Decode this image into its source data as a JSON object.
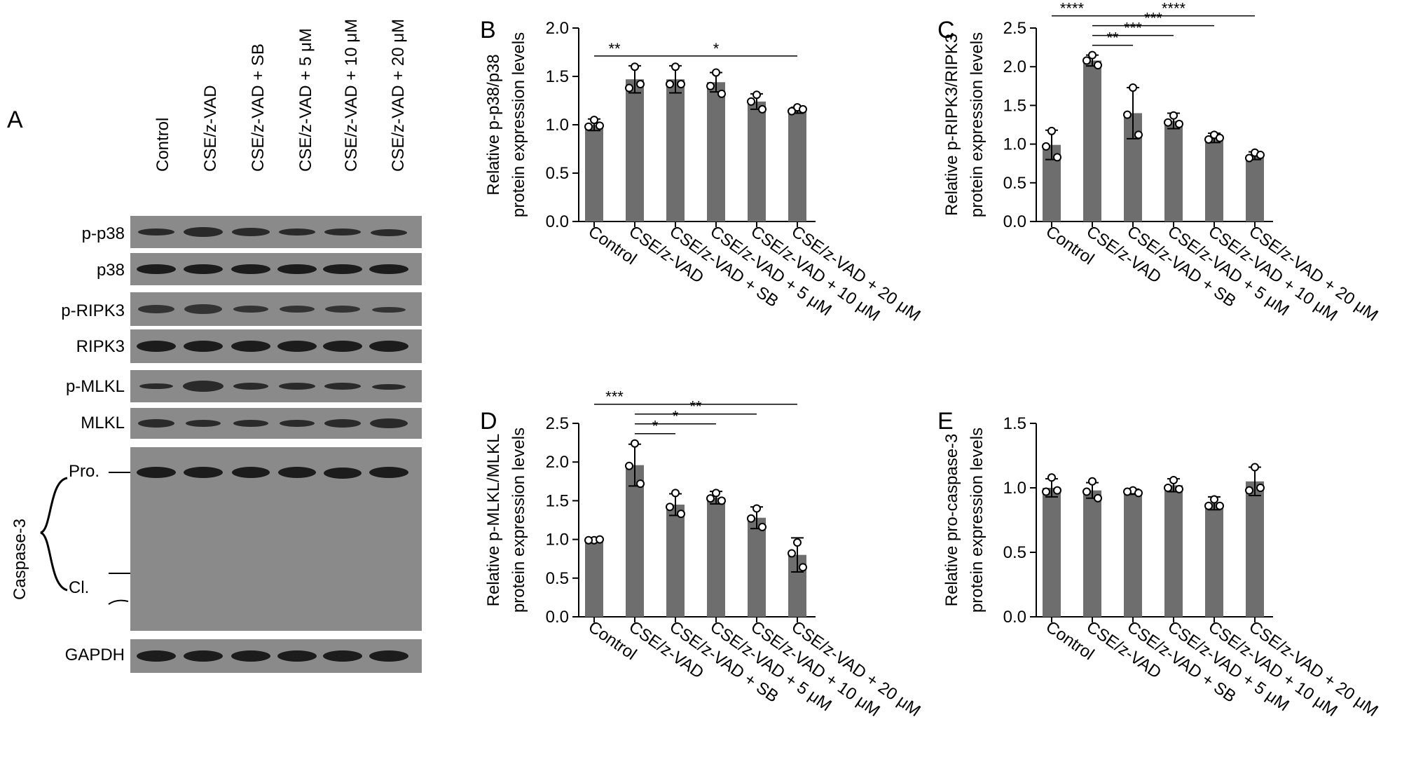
{
  "figure": {
    "panel_A": {
      "letter": "A",
      "lanes": [
        "Control",
        "CSE/z-VAD",
        "CSE/z-VAD + SB",
        "CSE/z-VAD + 5 μM",
        "CSE/z-VAD + 10 μM",
        "CSE/z-VAD + 20 μM"
      ],
      "blots": [
        {
          "label": "p-p38"
        },
        {
          "label": "p38"
        },
        {
          "label": "p-RIPK3"
        },
        {
          "label": "RIPK3"
        },
        {
          "label": "p-MLKL"
        },
        {
          "label": "MLKL"
        },
        {
          "label": "Caspase-3",
          "pro_label": "Pro.",
          "cleaved_label": "Cl."
        },
        {
          "label": "GAPDH"
        }
      ]
    }
  },
  "chart_data": [
    {
      "panel": "B",
      "type": "bar",
      "categories": [
        "Control",
        "CSE/z-VAD",
        "CSE/z-VAD + SB",
        "CSE/z-VAD + 5 μM",
        "CSE/z-VAD + 10 μM",
        "CSE/z-VAD + 20 μM"
      ],
      "values": [
        1.0,
        1.47,
        1.47,
        1.44,
        1.24,
        1.15
      ],
      "errors": [
        0.06,
        0.14,
        0.14,
        0.1,
        0.08,
        0.03
      ],
      "points": [
        [
          1.05,
          0.98,
          0.99
        ],
        [
          1.6,
          1.38,
          1.42
        ],
        [
          1.6,
          1.42,
          1.42
        ],
        [
          1.54,
          1.4,
          1.32
        ],
        [
          1.31,
          1.24,
          1.16
        ],
        [
          1.18,
          1.14,
          1.16
        ]
      ],
      "ylabel_lines": [
        "Relative p-p38/p38",
        "protein expression levels"
      ],
      "ylim": [
        0,
        2.0
      ],
      "yticks": [
        "0.0",
        "0.5",
        "1.0",
        "1.5",
        "2.0"
      ],
      "significance": [
        {
          "from": 0,
          "to": 1,
          "label": "**",
          "level": 0
        },
        {
          "from": 1,
          "to": 5,
          "label": "*",
          "level": 0
        }
      ],
      "grid": false
    },
    {
      "panel": "C",
      "type": "bar",
      "categories": [
        "Control",
        "CSE/z-VAD",
        "CSE/z-VAD + SB",
        "CSE/z-VAD + 5 μM",
        "CSE/z-VAD + 10 μM",
        "CSE/z-VAD + 20 μM"
      ],
      "values": [
        0.99,
        2.08,
        1.4,
        1.3,
        1.08,
        0.85
      ],
      "errors": [
        0.19,
        0.07,
        0.33,
        0.1,
        0.06,
        0.05
      ],
      "points": [
        [
          1.17,
          0.97,
          0.83
        ],
        [
          2.15,
          2.08,
          2.02
        ],
        [
          1.73,
          1.38,
          1.12
        ],
        [
          1.37,
          1.28,
          1.26
        ],
        [
          1.12,
          1.06,
          1.08
        ],
        [
          0.89,
          0.82,
          0.86
        ]
      ],
      "ylabel_lines": [
        "Relative p-RIPK3/RIPK3",
        "protein expression levels"
      ],
      "ylim": [
        0,
        2.5
      ],
      "yticks": [
        "0.0",
        "0.5",
        "1.0",
        "1.5",
        "2.0",
        "2.5"
      ],
      "significance": [
        {
          "from": 0,
          "to": 1,
          "label": "****",
          "level": 3
        },
        {
          "from": 1,
          "to": 2,
          "label": "**",
          "level": 0
        },
        {
          "from": 1,
          "to": 3,
          "label": "***",
          "level": 1
        },
        {
          "from": 1,
          "to": 4,
          "label": "***",
          "level": 2
        },
        {
          "from": 1,
          "to": 5,
          "label": "****",
          "level": 3
        }
      ],
      "grid": false
    },
    {
      "panel": "D",
      "type": "bar",
      "categories": [
        "Control",
        "CSE/z-VAD",
        "CSE/z-VAD + SB",
        "CSE/z-VAD + 5 μM",
        "CSE/z-VAD + 10 μM",
        "CSE/z-VAD + 20 μM"
      ],
      "values": [
        0.99,
        1.96,
        1.45,
        1.54,
        1.28,
        0.8
      ],
      "errors": [
        0.02,
        0.27,
        0.14,
        0.08,
        0.14,
        0.22
      ],
      "points": [
        [
          0.99,
          0.99,
          1.0
        ],
        [
          2.24,
          1.95,
          1.72
        ],
        [
          1.6,
          1.42,
          1.33
        ],
        [
          1.6,
          1.53,
          1.5
        ],
        [
          1.4,
          1.27,
          1.16
        ],
        [
          0.96,
          0.82,
          0.64
        ]
      ],
      "ylabel_lines": [
        "Relative p-MLKL/MLKL",
        "protein expression levels"
      ],
      "ylim": [
        0,
        2.5
      ],
      "yticks": [
        "0.0",
        "0.5",
        "1.0",
        "1.5",
        "2.0",
        "2.5"
      ],
      "significance": [
        {
          "from": 0,
          "to": 1,
          "label": "***",
          "level": 3
        },
        {
          "from": 1,
          "to": 2,
          "label": "*",
          "level": 0
        },
        {
          "from": 1,
          "to": 3,
          "label": "*",
          "level": 1
        },
        {
          "from": 1,
          "to": 4,
          "label": "**",
          "level": 2
        },
        {
          "from": 1,
          "to": 5,
          "label": "",
          "level": 3
        }
      ],
      "grid": false
    },
    {
      "panel": "E",
      "type": "bar",
      "categories": [
        "Control",
        "CSE/z-VAD",
        "CSE/z-VAD + SB",
        "CSE/z-VAD + 5 μM",
        "CSE/z-VAD + 10 μM",
        "CSE/z-VAD + 20 μM"
      ],
      "values": [
        1.0,
        0.98,
        0.97,
        1.02,
        0.88,
        1.05
      ],
      "errors": [
        0.07,
        0.06,
        0.02,
        0.05,
        0.05,
        0.11
      ],
      "points": [
        [
          1.08,
          0.97,
          0.98
        ],
        [
          1.05,
          0.97,
          0.92
        ],
        [
          0.98,
          0.97,
          0.96
        ],
        [
          1.06,
          1.0,
          0.99
        ],
        [
          0.91,
          0.86,
          0.86
        ],
        [
          1.16,
          0.98,
          1.0
        ]
      ],
      "ylabel_lines": [
        "Relative  pro-caspase-3",
        "protein expression levels"
      ],
      "ylim": [
        0,
        1.5
      ],
      "yticks": [
        "0.0",
        "0.5",
        "1.0",
        "1.5"
      ],
      "significance": [],
      "grid": false
    }
  ],
  "colors": {
    "bar": "#6e6e6e",
    "blot_bg": "#8a8a8a",
    "band": "#1c1c1c",
    "line": "#000000"
  }
}
